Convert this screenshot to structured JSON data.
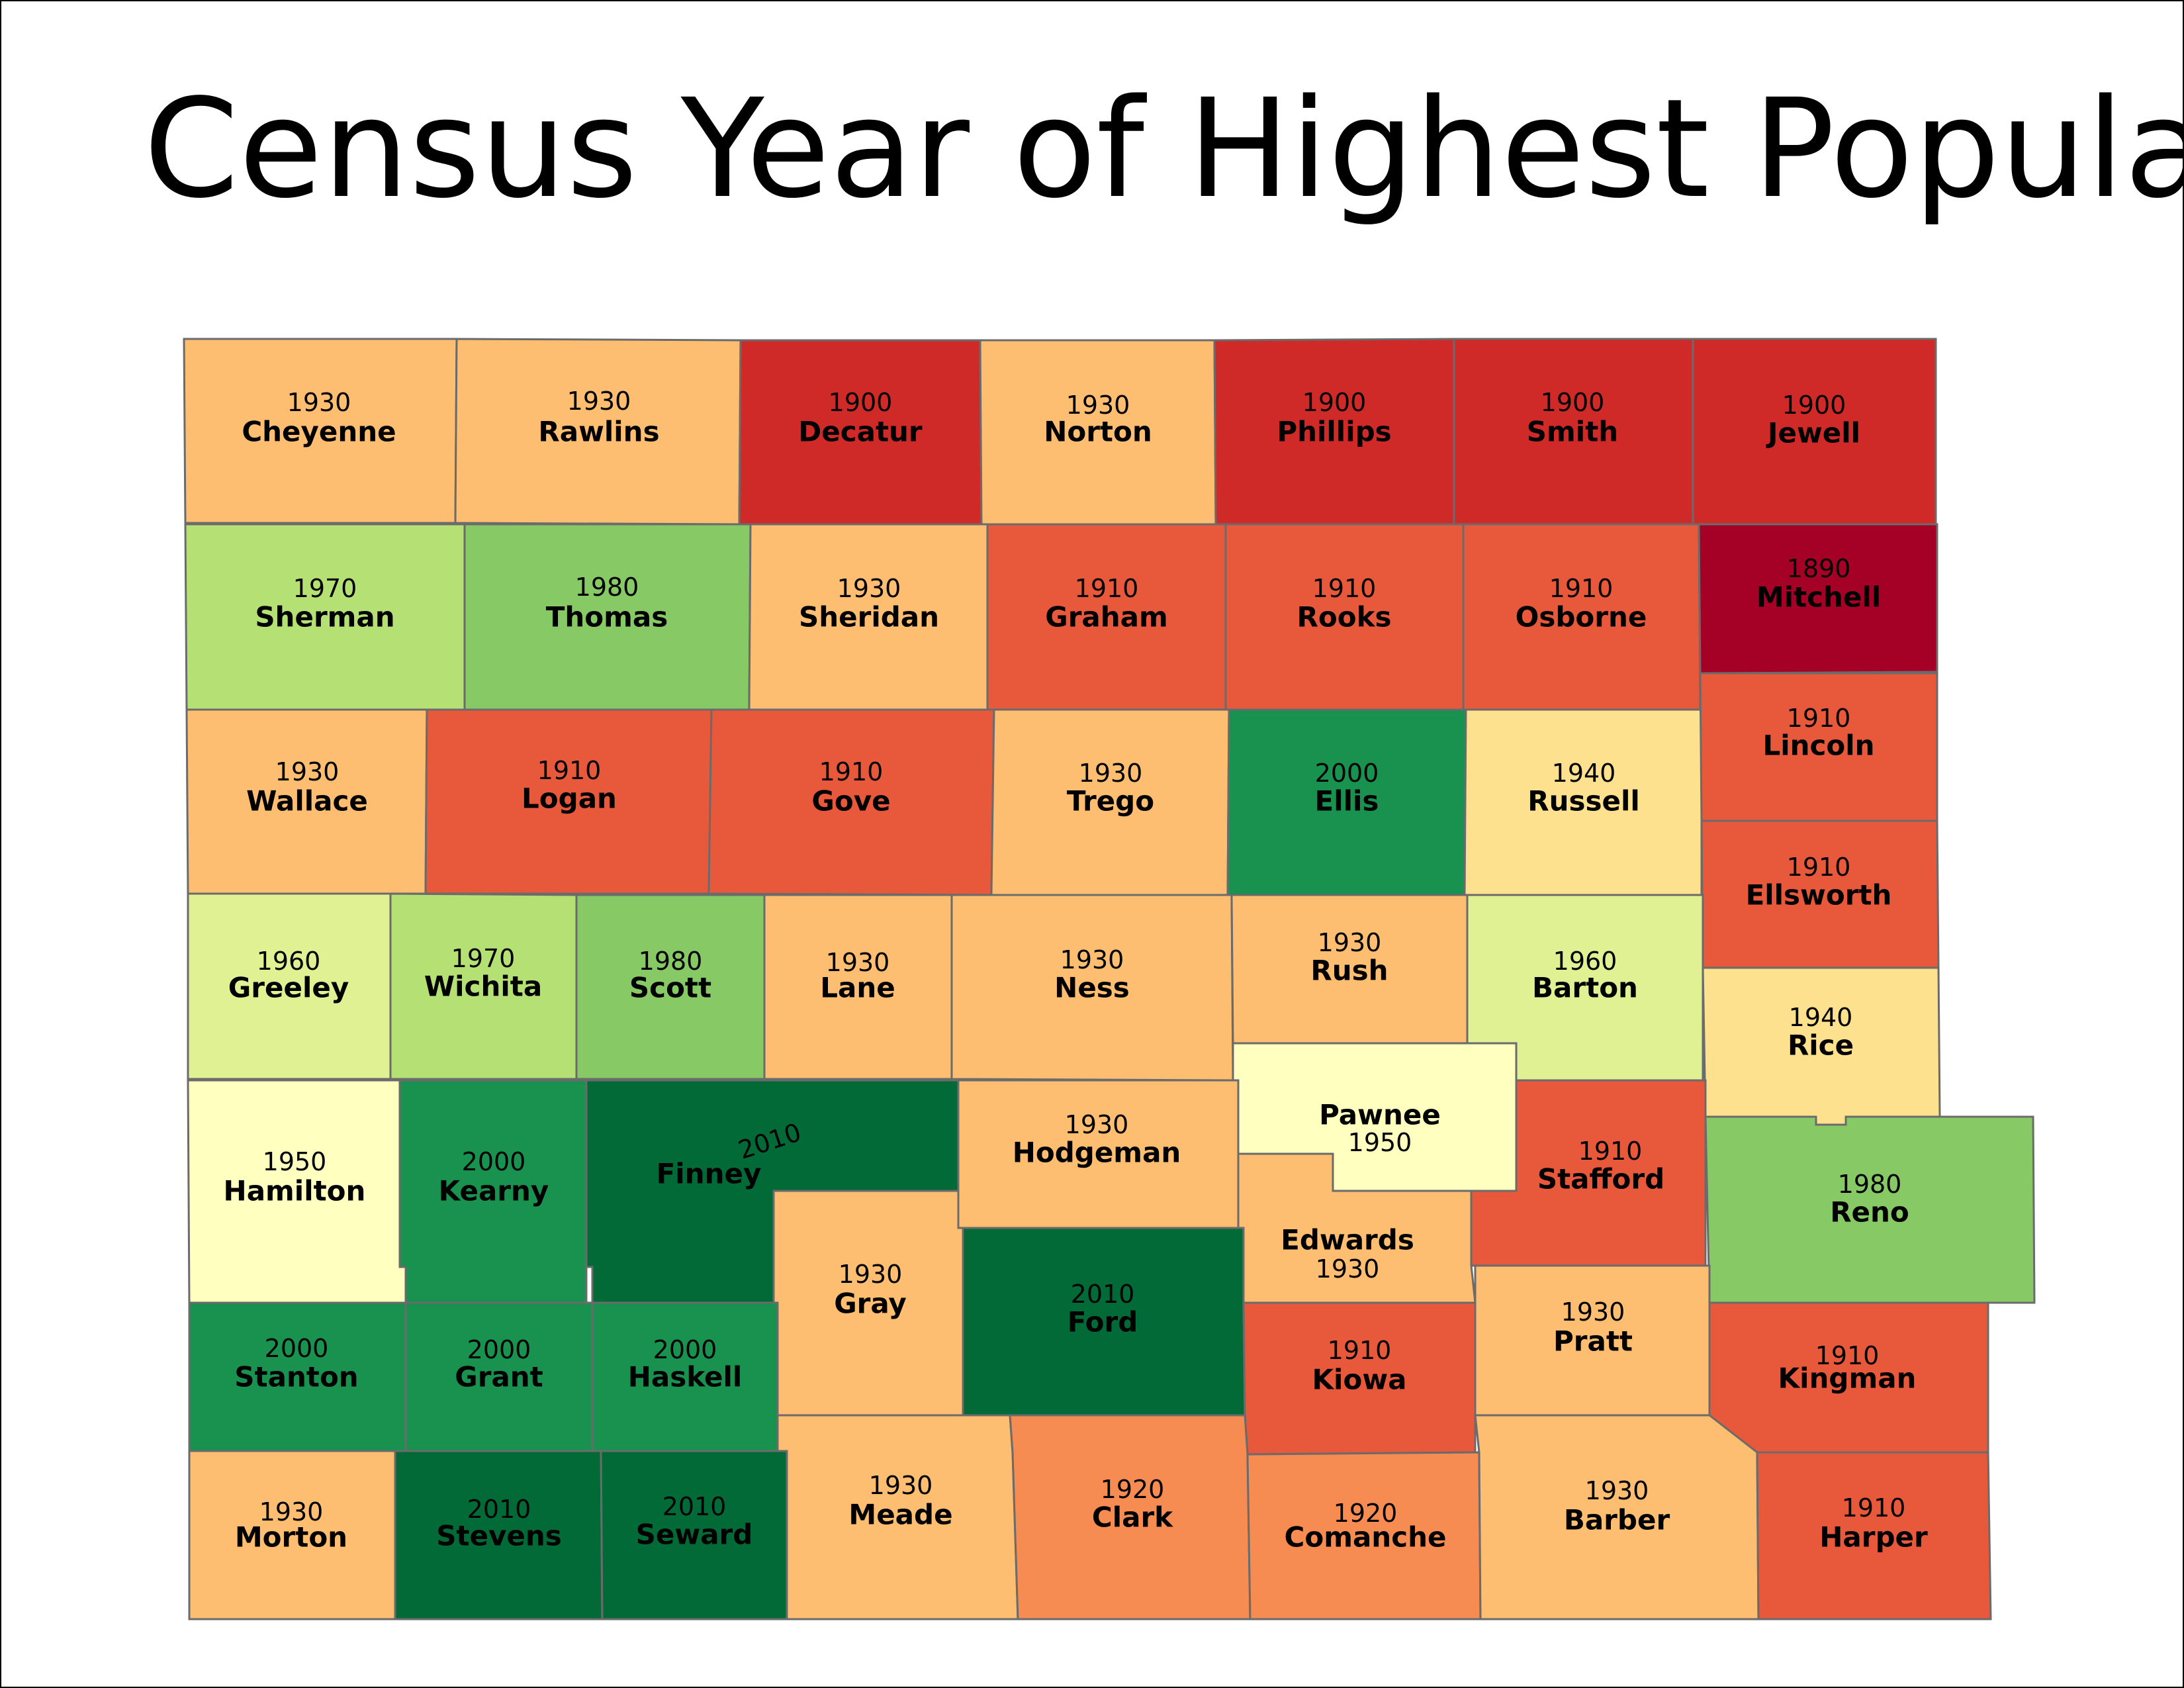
{
  "title": "Census Year of Highest Population",
  "colors": {
    "1890": "#a50026",
    "1900": "#d02a28",
    "1910": "#e8593b",
    "1920": "#f68c52",
    "1930": "#fdbe72",
    "1940": "#fee18f",
    "1950": "#ffffc0",
    "1960": "#dff192",
    "1970": "#b5e074",
    "1980": "#86c965",
    "2000": "#1a924f",
    "2010": "#026a37"
  },
  "counties": [
    {
      "name": "Cheyenne",
      "year": "1930"
    },
    {
      "name": "Rawlins",
      "year": "1930"
    },
    {
      "name": "Decatur",
      "year": "1900"
    },
    {
      "name": "Norton",
      "year": "1930"
    },
    {
      "name": "Phillips",
      "year": "1900"
    },
    {
      "name": "Smith",
      "year": "1900"
    },
    {
      "name": "Jewell",
      "year": "1900"
    },
    {
      "name": "Sherman",
      "year": "1970"
    },
    {
      "name": "Thomas",
      "year": "1980"
    },
    {
      "name": "Sheridan",
      "year": "1930"
    },
    {
      "name": "Graham",
      "year": "1910"
    },
    {
      "name": "Rooks",
      "year": "1910"
    },
    {
      "name": "Osborne",
      "year": "1910"
    },
    {
      "name": "Mitchell",
      "year": "1890"
    },
    {
      "name": "Wallace",
      "year": "1930"
    },
    {
      "name": "Logan",
      "year": "1910"
    },
    {
      "name": "Gove",
      "year": "1910"
    },
    {
      "name": "Trego",
      "year": "1930"
    },
    {
      "name": "Ellis",
      "year": "2000"
    },
    {
      "name": "Russell",
      "year": "1940"
    },
    {
      "name": "Lincoln",
      "year": "1910"
    },
    {
      "name": "Ellsworth",
      "year": "1910"
    },
    {
      "name": "Greeley",
      "year": "1960"
    },
    {
      "name": "Wichita",
      "year": "1970"
    },
    {
      "name": "Scott",
      "year": "1980"
    },
    {
      "name": "Lane",
      "year": "1930"
    },
    {
      "name": "Ness",
      "year": "1930"
    },
    {
      "name": "Rush",
      "year": "1930"
    },
    {
      "name": "Barton",
      "year": "1960"
    },
    {
      "name": "Rice",
      "year": "1940"
    },
    {
      "name": "Hamilton",
      "year": "1950"
    },
    {
      "name": "Kearny",
      "year": "2000"
    },
    {
      "name": "Finney",
      "year": "2010"
    },
    {
      "name": "Hodgeman",
      "year": "1930"
    },
    {
      "name": "Pawnee",
      "year": "1950"
    },
    {
      "name": "Stafford",
      "year": "1910"
    },
    {
      "name": "Reno",
      "year": "1980"
    },
    {
      "name": "Edwards",
      "year": "1930"
    },
    {
      "name": "Gray",
      "year": "1930"
    },
    {
      "name": "Ford",
      "year": "2010"
    },
    {
      "name": "Stanton",
      "year": "2000"
    },
    {
      "name": "Grant",
      "year": "2000"
    },
    {
      "name": "Haskell",
      "year": "2000"
    },
    {
      "name": "Kiowa",
      "year": "1910"
    },
    {
      "name": "Pratt",
      "year": "1930"
    },
    {
      "name": "Kingman",
      "year": "1910"
    },
    {
      "name": "Morton",
      "year": "1930"
    },
    {
      "name": "Stevens",
      "year": "2010"
    },
    {
      "name": "Seward",
      "year": "2010"
    },
    {
      "name": "Meade",
      "year": "1930"
    },
    {
      "name": "Clark",
      "year": "1920"
    },
    {
      "name": "Comanche",
      "year": "1920"
    },
    {
      "name": "Barber",
      "year": "1930"
    },
    {
      "name": "Harper",
      "year": "1910"
    }
  ]
}
